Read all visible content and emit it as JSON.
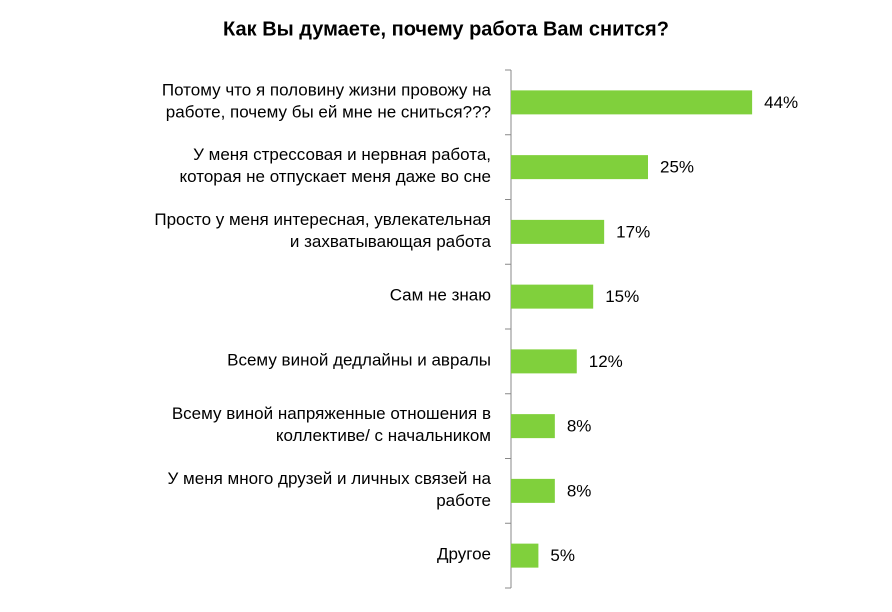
{
  "chart_data": {
    "type": "hbar",
    "title": "Как Вы думаете, почему работа Вам снится?",
    "categories": [
      [
        "Потому что я половину жизни провожу на",
        "работе, почему бы ей мне не сниться???"
      ],
      [
        "У меня стрессовая и нервная работа,",
        "которая не отпускает меня даже во сне"
      ],
      [
        "Просто у меня интересная, увлекательная",
        "и захватывающая работа"
      ],
      [
        "Сам не знаю"
      ],
      [
        "Всему виной дедлайны и авралы"
      ],
      [
        "Всему виной напряженные отношения в",
        "коллективе/ с начальником"
      ],
      [
        "У меня много друзей и личных связей на",
        "работе"
      ],
      [
        "Другое"
      ]
    ],
    "values": [
      44,
      25,
      17,
      15,
      12,
      8,
      8,
      5
    ],
    "value_labels": [
      "44%",
      "25%",
      "17%",
      "15%",
      "12%",
      "8%",
      "8%",
      "5%"
    ],
    "color": "#80d03c",
    "xlim": [
      0,
      50
    ]
  }
}
